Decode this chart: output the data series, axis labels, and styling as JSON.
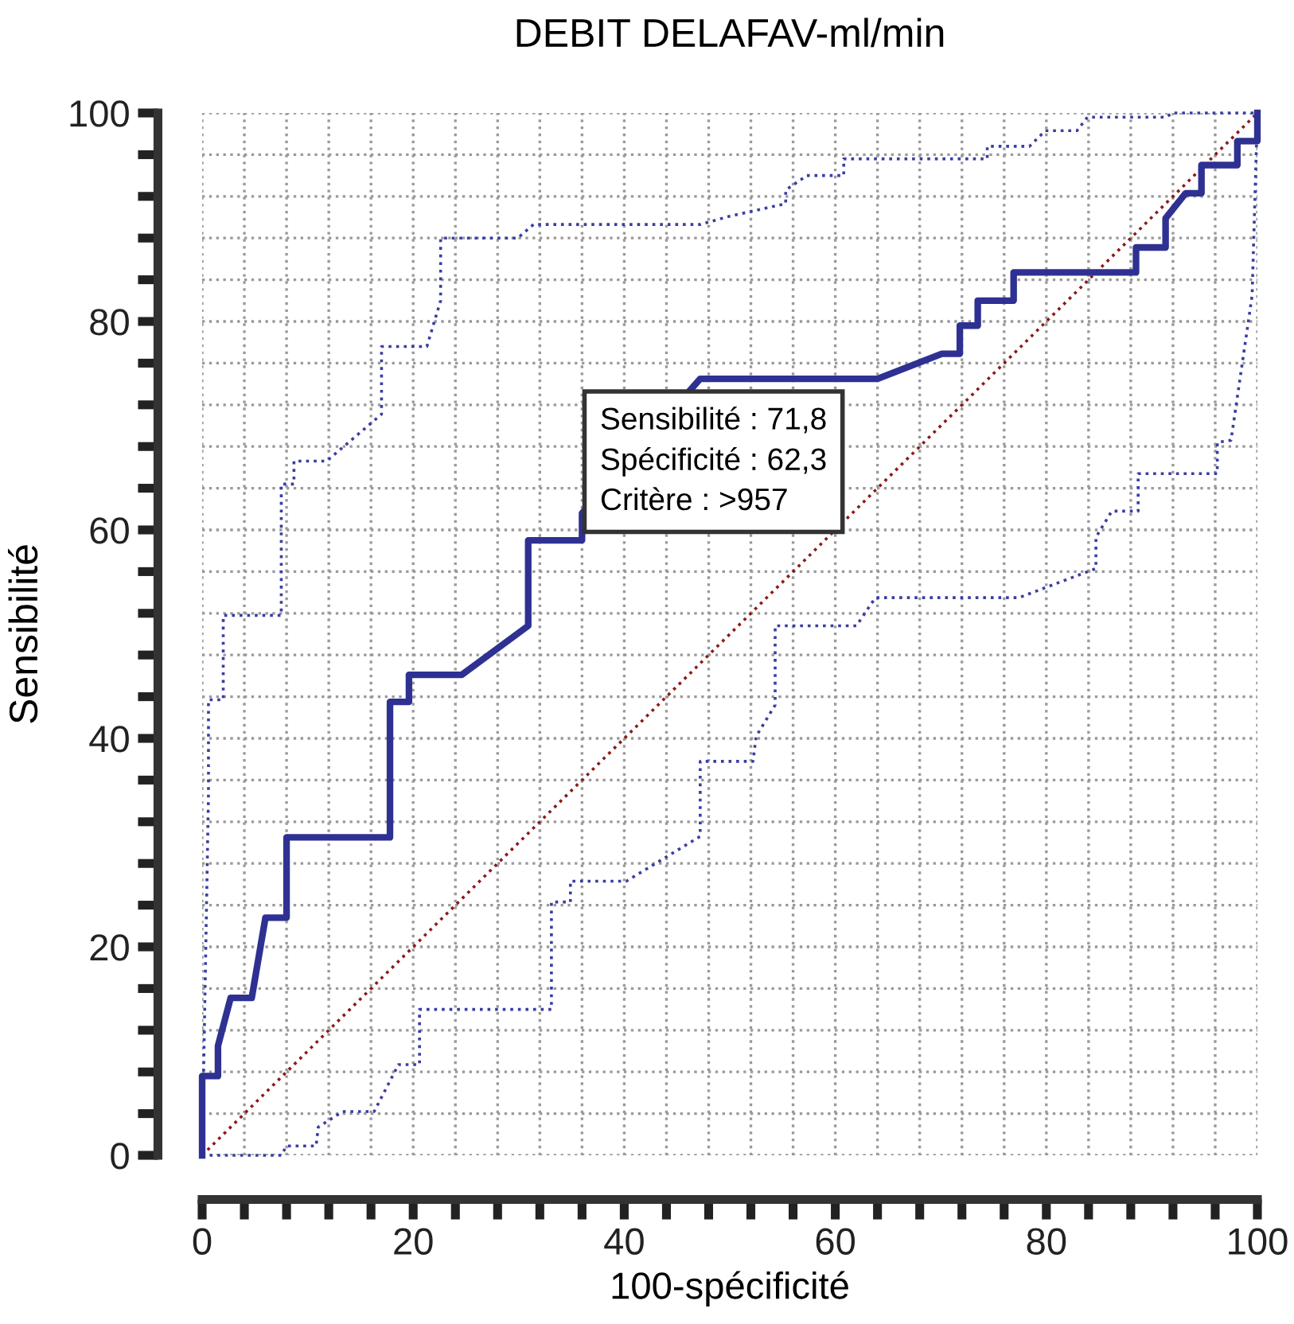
{
  "chart_data": {
    "type": "line",
    "title": "DEBIT DELAFAV-ml/min",
    "xlabel": "100-spécificité",
    "ylabel": "Sensibilité",
    "xlim": [
      0,
      100
    ],
    "ylim": [
      0,
      100
    ],
    "xticks": [
      0,
      {
        "value": 4,
        "label": null
      },
      {
        "value": 8,
        "label": null
      },
      {
        "value": 12,
        "label": null
      },
      {
        "value": 16,
        "label": null
      },
      20,
      {
        "value": 24,
        "label": null
      },
      {
        "value": 28,
        "label": null
      },
      {
        "value": 32,
        "label": null
      },
      {
        "value": 36,
        "label": null
      },
      40,
      {
        "value": 44,
        "label": null
      },
      {
        "value": 48,
        "label": null
      },
      {
        "value": 52,
        "label": null
      },
      {
        "value": 56,
        "label": null
      },
      60,
      {
        "value": 64,
        "label": null
      },
      {
        "value": 68,
        "label": null
      },
      {
        "value": 72,
        "label": null
      },
      {
        "value": 76,
        "label": null
      },
      80,
      {
        "value": 84,
        "label": null
      },
      {
        "value": 88,
        "label": null
      },
      {
        "value": 92,
        "label": null
      },
      {
        "value": 96,
        "label": null
      },
      100
    ],
    "yticks": [
      0,
      {
        "value": 4,
        "label": null
      },
      {
        "value": 8,
        "label": null
      },
      {
        "value": 12,
        "label": null
      },
      {
        "value": 16,
        "label": null
      },
      20,
      {
        "value": 24,
        "label": null
      },
      {
        "value": 28,
        "label": null
      },
      {
        "value": 32,
        "label": null
      },
      {
        "value": 36,
        "label": null
      },
      40,
      {
        "value": 44,
        "label": null
      },
      {
        "value": 48,
        "label": null
      },
      {
        "value": 52,
        "label": null
      },
      {
        "value": 56,
        "label": null
      },
      60,
      {
        "value": 64,
        "label": null
      },
      {
        "value": 68,
        "label": null
      },
      {
        "value": 72,
        "label": null
      },
      {
        "value": 76,
        "label": null
      },
      80,
      {
        "value": 84,
        "label": null
      },
      {
        "value": 88,
        "label": null
      },
      {
        "value": 92,
        "label": null
      },
      {
        "value": 96,
        "label": null
      },
      100
    ],
    "grid": true,
    "marker": "none",
    "series": [
      {
        "color": "#8b1a1a",
        "line_style": "dotted",
        "x": [
          0,
          100
        ],
        "values": [
          0,
          100
        ]
      },
      {
        "color": "#3a3ea0",
        "line_style": "dotted",
        "x": [
          0,
          0.6,
          0.6,
          2.0,
          2.0,
          7.5,
          7.5,
          8.7,
          8.7,
          11.8,
          17.0,
          17.0,
          21.3,
          22.6,
          22.6,
          29.9,
          31.4,
          47.2,
          50.0,
          55.3,
          55.3,
          57.3,
          60.8,
          60.8,
          74.4,
          74.4,
          78.4,
          79.9,
          82.9,
          83.9,
          91.4,
          91.9,
          100
        ],
        "values": [
          0,
          34.6,
          43.7,
          43.7,
          51.8,
          51.8,
          64.4,
          64.4,
          66.6,
          66.6,
          71.1,
          77.6,
          77.6,
          82.0,
          88.0,
          88.0,
          89.3,
          89.3,
          90.1,
          91.3,
          92.6,
          94.0,
          94.0,
          95.6,
          95.6,
          96.8,
          96.8,
          98.3,
          98.3,
          99.6,
          99.6,
          100,
          100
        ]
      },
      {
        "color": "#3a3ea0",
        "line_style": "dotted",
        "x": [
          0,
          7.5,
          8.0,
          10.8,
          11.0,
          13.3,
          16.3,
          18.6,
          20.6,
          20.6,
          33.1,
          33.1,
          34.9,
          34.9,
          40.2,
          47.2,
          47.2,
          52.2,
          52.5,
          54.3,
          54.3,
          62.0,
          63.8,
          77.4,
          84.7,
          84.7,
          86.2,
          88.7,
          88.7,
          96.2,
          96.2,
          97.5,
          99.0,
          99.5,
          100
        ],
        "values": [
          0,
          0,
          0.9,
          0.9,
          2.7,
          4.2,
          4.2,
          8.7,
          8.7,
          14.0,
          14.0,
          24.3,
          24.3,
          26.3,
          26.3,
          30.6,
          37.8,
          37.8,
          40.2,
          43.2,
          50.8,
          50.8,
          53.5,
          53.5,
          56.3,
          59.3,
          61.8,
          61.8,
          65.4,
          65.4,
          68.4,
          68.6,
          79.0,
          82.5,
          100
        ]
      },
      {
        "color": "#2e3192",
        "line_style": "solid",
        "x": [
          0,
          0,
          1.5,
          1.5,
          2.7,
          4.7,
          6.0,
          8.0,
          8.0,
          17.8,
          17.8,
          19.6,
          19.6,
          24.6,
          30.9,
          30.9,
          36.0,
          36.0,
          47.2,
          64.0,
          70.1,
          71.8,
          71.8,
          73.5,
          73.5,
          76.9,
          76.9,
          88.5,
          88.5,
          91.3,
          91.3,
          93.2,
          94.7,
          94.7,
          98.1,
          98.1,
          100,
          100
        ],
        "values": [
          0,
          7.6,
          7.6,
          10.5,
          15.1,
          15.1,
          22.8,
          22.8,
          30.5,
          30.5,
          43.5,
          43.5,
          46.1,
          46.1,
          50.8,
          59.0,
          59.0,
          61.6,
          74.5,
          74.5,
          76.9,
          76.9,
          79.6,
          79.6,
          82.0,
          82.0,
          84.7,
          84.7,
          87.1,
          87.1,
          89.9,
          92.3,
          92.3,
          95.0,
          95.0,
          97.3,
          97.3,
          100
        ]
      }
    ],
    "annotations": [
      "Sensibilité : 71,8\nSpécificité : 62,3\nCritère : >957"
    ]
  }
}
